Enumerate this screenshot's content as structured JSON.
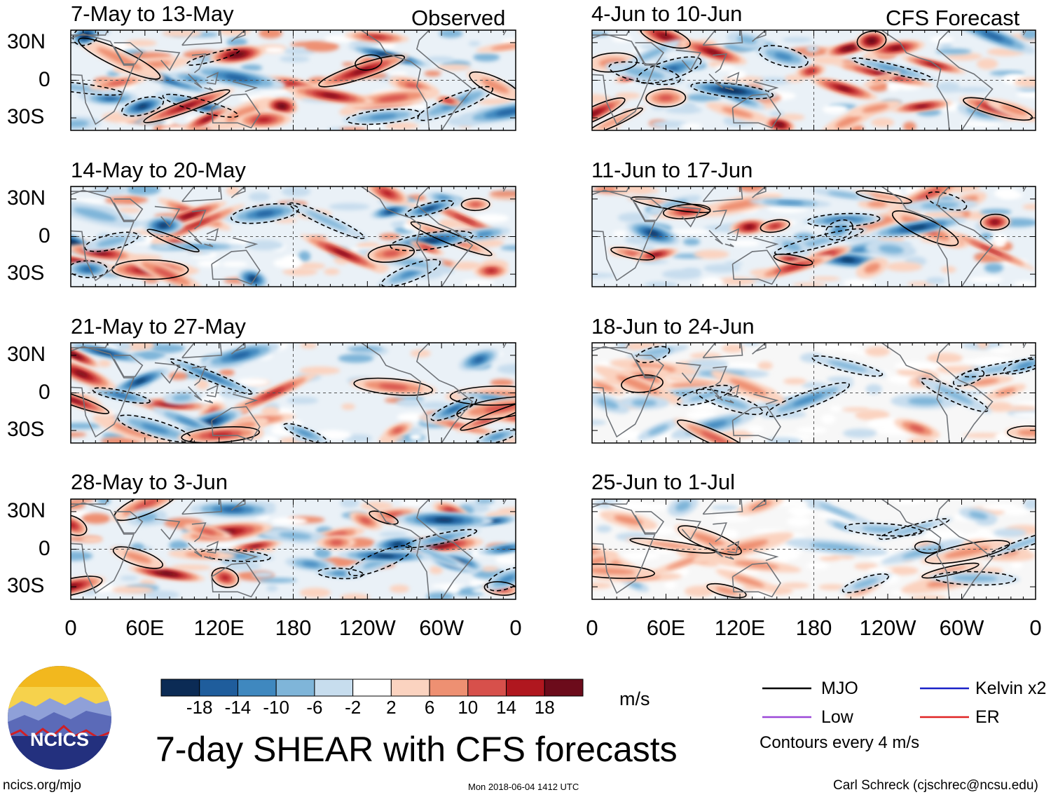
{
  "chart_data": {
    "type": "heatmap",
    "title": "7-day SHEAR with CFS forecasts",
    "variable": "vertical wind shear anomaly",
    "units": "m/s",
    "contour_interval": "Contours every 4 m/s",
    "columns": [
      {
        "label": "Observed",
        "panels": [
          "7-May to 13-May",
          "14-May to 20-May",
          "21-May to 27-May",
          "28-May to 3-Jun"
        ]
      },
      {
        "label": "CFS Forecast",
        "panels": [
          "4-Jun to 10-Jun",
          "11-Jun to 17-Jun",
          "18-Jun to 24-Jun",
          "25-Jun to 1-Jul"
        ]
      }
    ],
    "x_ticks": [
      "0",
      "60E",
      "120E",
      "180",
      "120W",
      "60W",
      "0"
    ],
    "y_ticks": [
      "30N",
      "0",
      "30S"
    ],
    "xlim_deg": [
      0,
      360
    ],
    "ylim_deg": [
      -40,
      40
    ],
    "colorbar": {
      "levels": [
        -18,
        -14,
        -10,
        -6,
        -2,
        2,
        6,
        10,
        14,
        18
      ],
      "labels": [
        "-18",
        "-14",
        "-10",
        "-6",
        "-2",
        "2",
        "6",
        "10",
        "14",
        "18"
      ],
      "colors": [
        "#0b2b55",
        "#1f5d9c",
        "#3f88bf",
        "#7fb5d9",
        "#c7ddee",
        "#ffffff",
        "#fbd3c0",
        "#ee9072",
        "#d7504b",
        "#b0171f",
        "#6c0b1b"
      ]
    },
    "legend": [
      {
        "label": "MJO",
        "color": "#000000"
      },
      {
        "label": "Kelvin x2",
        "color": "#1a22c8"
      },
      {
        "label": "Low",
        "color": "#9b48d8"
      },
      {
        "label": "ER",
        "color": "#e02424"
      }
    ],
    "anomaly_intensity": [
      1.0,
      1.0,
      1.0,
      1.0,
      1.0,
      0.8,
      0.45,
      0.35
    ]
  },
  "logo": {
    "text": "NCICS"
  },
  "footer": {
    "url": "ncics.org/mjo",
    "timestamp": "Mon 2018-06-04 1412 UTC",
    "author": "Carl Schreck (cjschrec@ncsu.edu)"
  }
}
